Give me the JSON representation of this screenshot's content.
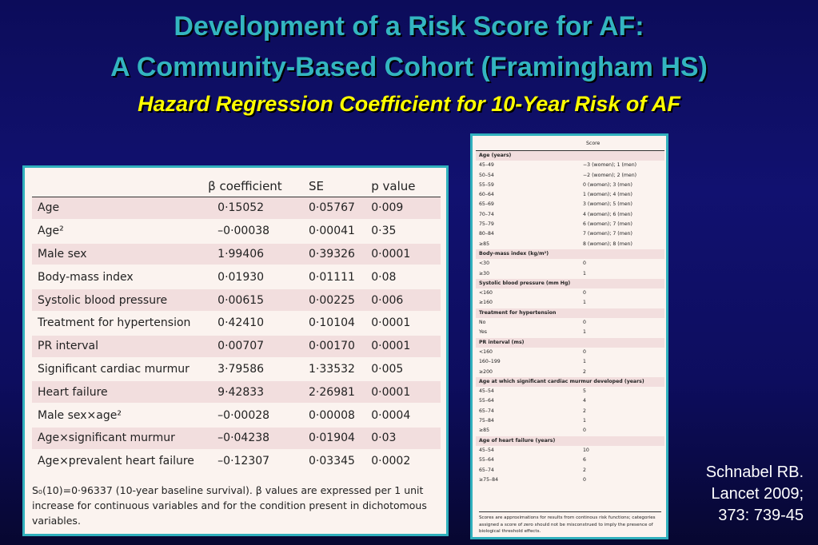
{
  "title": {
    "line1": "Development of a Risk Score for AF:",
    "line2": "A Community-Based Cohort (Framingham HS)",
    "subtitle": "Hazard Regression Coefficient for 10-Year Risk of AF"
  },
  "coef_table": {
    "headers": [
      "",
      "β coefficient",
      "SE",
      "p value"
    ],
    "rows": [
      [
        "Age",
        "0·15052",
        "0·05767",
        "0·009"
      ],
      [
        "Age²",
        "–0·00038",
        "0·00041",
        "0·35"
      ],
      [
        "Male sex",
        "1·99406",
        "0·39326",
        "0·0001"
      ],
      [
        "Body-mass index",
        "0·01930",
        "0·01111",
        "0·08"
      ],
      [
        "Systolic blood pressure",
        "0·00615",
        "0·00225",
        "0·006"
      ],
      [
        "Treatment for hypertension",
        "0·42410",
        "0·10104",
        "0·0001"
      ],
      [
        "PR interval",
        "0·00707",
        "0·00170",
        "0·0001"
      ],
      [
        "Significant cardiac murmur",
        "3·79586",
        "1·33532",
        "0·005"
      ],
      [
        "Heart failure",
        "9·42833",
        "2·26981",
        "0·0001"
      ],
      [
        "Male sex×age²",
        "–0·00028",
        "0·00008",
        "0·0004"
      ],
      [
        "Age×significant murmur",
        "–0·04238",
        "0·01904",
        "0·03"
      ],
      [
        "Age×prevalent heart failure",
        "–0·12307",
        "0·03345",
        "0·0002"
      ]
    ],
    "footnote": "S₀(10)=0·96337 (10-year baseline survival). β values are expressed per 1 unit increase for continuous variables and for the condition present in dichotomous variables."
  },
  "score_table": {
    "header": "Score",
    "rows": [
      {
        "type": "sec",
        "label": "Age (years)",
        "score": ""
      },
      {
        "type": "row",
        "label": "45–49",
        "score": "−3 (women); 1 (men)"
      },
      {
        "type": "row",
        "label": "50–54",
        "score": "−2 (women); 2 (men)"
      },
      {
        "type": "row",
        "label": "55–59",
        "score": "0 (women); 3 (men)"
      },
      {
        "type": "row",
        "label": "60–64",
        "score": "1 (women); 4 (men)"
      },
      {
        "type": "row",
        "label": "65–69",
        "score": "3 (women); 5 (men)"
      },
      {
        "type": "row",
        "label": "70–74",
        "score": "4 (women); 6 (men)"
      },
      {
        "type": "row",
        "label": "75–79",
        "score": "6 (women); 7 (men)"
      },
      {
        "type": "row",
        "label": "80–84",
        "score": "7 (women); 7 (men)"
      },
      {
        "type": "row",
        "label": "≥85",
        "score": "8 (women); 8 (men)"
      },
      {
        "type": "sec",
        "label": "Body-mass index (kg/m²)",
        "score": ""
      },
      {
        "type": "row",
        "label": "<30",
        "score": "0"
      },
      {
        "type": "row",
        "label": "≥30",
        "score": "1"
      },
      {
        "type": "sec",
        "label": "Systolic blood pressure (mm Hg)",
        "score": ""
      },
      {
        "type": "row",
        "label": "<160",
        "score": "0"
      },
      {
        "type": "row",
        "label": "≥160",
        "score": "1"
      },
      {
        "type": "sec",
        "label": "Treatment for hypertension",
        "score": ""
      },
      {
        "type": "row",
        "label": "No",
        "score": "0"
      },
      {
        "type": "row",
        "label": "Yes",
        "score": "1"
      },
      {
        "type": "sec",
        "label": "PR interval (ms)",
        "score": ""
      },
      {
        "type": "row",
        "label": "<160",
        "score": "0"
      },
      {
        "type": "row",
        "label": "160–199",
        "score": "1"
      },
      {
        "type": "row",
        "label": "≥200",
        "score": "2"
      },
      {
        "type": "sec",
        "label": "Age at which significant cardiac murmur developed (years)",
        "score": ""
      },
      {
        "type": "row",
        "label": "45–54",
        "score": "5"
      },
      {
        "type": "row",
        "label": "55–64",
        "score": "4"
      },
      {
        "type": "row",
        "label": "65–74",
        "score": "2"
      },
      {
        "type": "row",
        "label": "75–84",
        "score": "1"
      },
      {
        "type": "row",
        "label": "≥85",
        "score": "0"
      },
      {
        "type": "sec",
        "label": "Age of heart failure (years)",
        "score": ""
      },
      {
        "type": "row",
        "label": "45–54",
        "score": "10"
      },
      {
        "type": "row",
        "label": "55–64",
        "score": "6"
      },
      {
        "type": "row",
        "label": "65–74",
        "score": "2"
      },
      {
        "type": "row",
        "label": "≥75–84",
        "score": "0"
      }
    ],
    "note": "Scores are approximations for results from continous risk functions; categories assigned a score of zero should not be misconstrued to imply the presence of biological threshold effects."
  },
  "citation": {
    "line1": "Schnabel RB.",
    "line2": "Lancet 2009;",
    "line3": "373: 739-45"
  },
  "colors": {
    "title": "#33b5c0",
    "subtitle": "#ffff00",
    "panel_border": "#30b0bd",
    "row_shade": "#f2dede"
  }
}
